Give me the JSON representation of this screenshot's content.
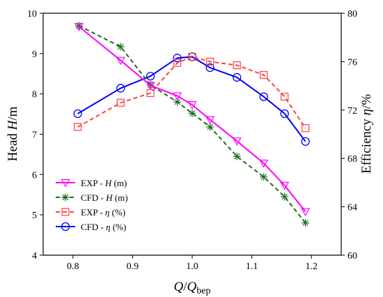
{
  "chart_data": {
    "type": "line",
    "x_axis": {
      "label_main": "Q",
      "label_sep": "/",
      "label_main2": "Q",
      "label_sub": "bep",
      "range": [
        0.75,
        1.25
      ],
      "ticks": [
        0.8,
        0.9,
        1.0,
        1.1,
        1.2
      ],
      "tick_labels": [
        "0.8",
        "0.9",
        "1.0",
        "1.1",
        "1.2"
      ]
    },
    "y_left": {
      "label_prefix": "Head ",
      "label_var": "H",
      "label_suffix": "/m",
      "range": [
        4,
        10
      ],
      "ticks": [
        4,
        5,
        6,
        7,
        8,
        9,
        10
      ],
      "tick_labels": [
        "4",
        "5",
        "6",
        "7",
        "8",
        "9",
        "10"
      ]
    },
    "y_right": {
      "label_prefix": "Efficiency ",
      "label_var": "η",
      "label_suffix": "/%",
      "range": [
        60,
        80
      ],
      "ticks": [
        60,
        64,
        68,
        72,
        76,
        80
      ],
      "tick_labels": [
        "60",
        "64",
        "68",
        "72",
        "76",
        "80"
      ]
    },
    "series": [
      {
        "name_prefix": "EXP - ",
        "name_var": "H",
        "name_suffix": " (m)",
        "axis": "left",
        "color": "#ff00ff",
        "dash": "",
        "marker": "triangle-down",
        "points": [
          [
            0.81,
            9.67
          ],
          [
            0.88,
            8.83
          ],
          [
            0.93,
            8.21
          ],
          [
            0.975,
            7.95
          ],
          [
            1.0,
            7.73
          ],
          [
            1.03,
            7.36
          ],
          [
            1.075,
            6.83
          ],
          [
            1.12,
            6.28
          ],
          [
            1.155,
            5.73
          ],
          [
            1.19,
            5.08
          ]
        ]
      },
      {
        "name_prefix": "CFD - ",
        "name_var": "H",
        "name_suffix": " (m)",
        "axis": "left",
        "color": "#1a6e1a",
        "dash": "6,4",
        "marker": "asterisk",
        "points": [
          [
            0.81,
            9.69
          ],
          [
            0.88,
            9.17
          ],
          [
            0.93,
            8.22
          ],
          [
            0.975,
            7.8
          ],
          [
            1.0,
            7.52
          ],
          [
            1.03,
            7.18
          ],
          [
            1.075,
            6.45
          ],
          [
            1.12,
            5.94
          ],
          [
            1.155,
            5.45
          ],
          [
            1.19,
            4.8
          ]
        ]
      },
      {
        "name_prefix": "EXP - ",
        "name_var": "η",
        "name_suffix": " (%)",
        "axis": "right",
        "color": "#ff4040",
        "dash": "6,4",
        "marker": "square",
        "points": [
          [
            0.808,
            70.6
          ],
          [
            0.88,
            72.6
          ],
          [
            0.93,
            73.4
          ],
          [
            0.975,
            75.9
          ],
          [
            1.0,
            76.4
          ],
          [
            1.03,
            76.0
          ],
          [
            1.075,
            75.7
          ],
          [
            1.12,
            74.9
          ],
          [
            1.155,
            73.1
          ],
          [
            1.19,
            70.5
          ]
        ]
      },
      {
        "name_prefix": "CFD - ",
        "name_var": "η",
        "name_suffix": " (%)",
        "axis": "right",
        "color": "#0000ff",
        "dash": "",
        "marker": "circle",
        "points": [
          [
            0.808,
            71.7
          ],
          [
            0.88,
            73.8
          ],
          [
            0.93,
            74.8
          ],
          [
            0.975,
            76.3
          ],
          [
            1.0,
            76.4
          ],
          [
            1.03,
            75.5
          ],
          [
            1.075,
            74.7
          ],
          [
            1.12,
            73.1
          ],
          [
            1.155,
            71.7
          ],
          [
            1.19,
            69.4
          ]
        ]
      }
    ],
    "legend": {
      "position": "bottom-left"
    }
  }
}
